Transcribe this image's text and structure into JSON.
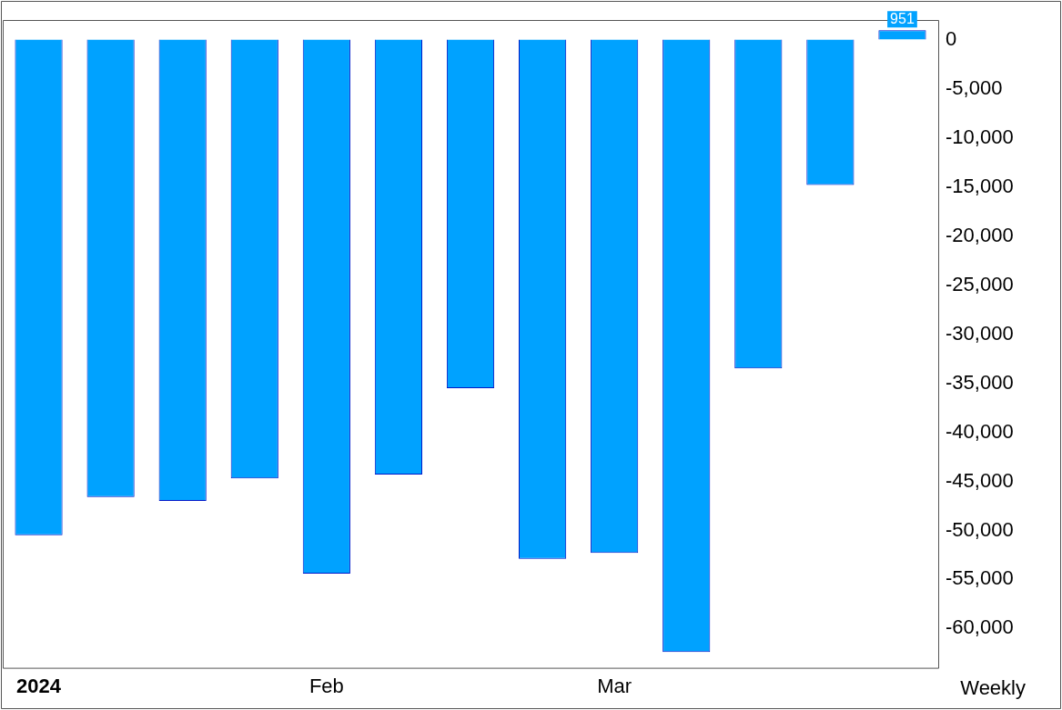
{
  "chart_data": {
    "type": "bar",
    "categories": [
      "2024",
      null,
      null,
      null,
      "Feb",
      null,
      null,
      null,
      "Mar",
      null,
      null,
      null,
      null
    ],
    "values": [
      -50500,
      -46600,
      -47000,
      -44700,
      -54400,
      -44300,
      -35500,
      -52900,
      -52300,
      -62400,
      -33500,
      -14800,
      951
    ],
    "value_labels": [
      null,
      null,
      null,
      null,
      null,
      null,
      null,
      null,
      null,
      null,
      null,
      null,
      "951"
    ],
    "color": "#00a2ff",
    "ylim": [
      -64000,
      2000
    ],
    "yticks": [
      {
        "value": 0,
        "label": "0"
      },
      {
        "value": -5000,
        "label": "-5,000"
      },
      {
        "value": -10000,
        "label": "-10,000"
      },
      {
        "value": -15000,
        "label": "-15,000"
      },
      {
        "value": -20000,
        "label": "-20,000"
      },
      {
        "value": -25000,
        "label": "-25,000"
      },
      {
        "value": -30000,
        "label": "-30,000"
      },
      {
        "value": -35000,
        "label": "-35,000"
      },
      {
        "value": -40000,
        "label": "-40,000"
      },
      {
        "value": -45000,
        "label": "-45,000"
      },
      {
        "value": -50000,
        "label": "-50,000"
      },
      {
        "value": -55000,
        "label": "-55,000"
      },
      {
        "value": -60000,
        "label": "-60,000"
      }
    ],
    "grid": false,
    "annotations": [
      "Weekly"
    ]
  }
}
